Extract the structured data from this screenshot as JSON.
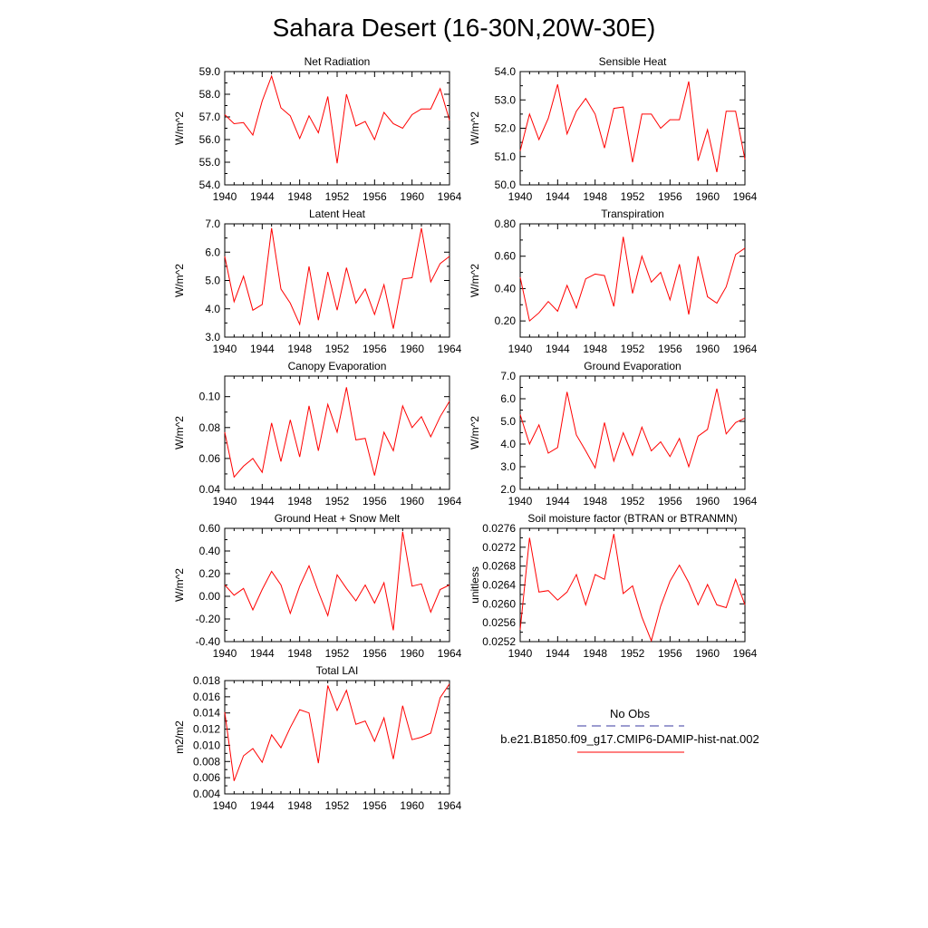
{
  "page": {
    "title": "Sahara Desert (16-30N,20W-30E)"
  },
  "legend": {
    "entries": [
      {
        "label": "No Obs",
        "color": "#3a3aa0",
        "dash": true
      },
      {
        "label": "b.e21.B1850.f09_g17.CMIP6-DAMIP-hist-nat.002",
        "color": "#ff0000",
        "dash": false
      }
    ]
  },
  "chart_data": [
    {
      "type": "line",
      "title": "Net Radiation",
      "ylabel": "W/m^2",
      "x": [
        1940,
        1941,
        1942,
        1943,
        1944,
        1945,
        1946,
        1947,
        1948,
        1949,
        1950,
        1951,
        1952,
        1953,
        1954,
        1955,
        1956,
        1957,
        1958,
        1959,
        1960,
        1961,
        1962,
        1963,
        1964
      ],
      "xlim": [
        1940,
        1964
      ],
      "xticks": [
        "1940",
        "1944",
        "1948",
        "1952",
        "1956",
        "1960",
        "1964"
      ],
      "ylim": [
        54.0,
        59.0
      ],
      "yticks": [
        "54.0",
        "55.0",
        "56.0",
        "57.0",
        "58.0",
        "59.0"
      ],
      "series": [
        {
          "color": "#ff0000",
          "values": [
            57.1,
            56.7,
            56.75,
            56.2,
            57.7,
            58.8,
            57.4,
            57.05,
            56.05,
            57.05,
            56.3,
            57.9,
            54.95,
            58.0,
            56.6,
            56.8,
            56.0,
            57.2,
            56.7,
            56.5,
            57.1,
            57.35,
            57.35,
            58.25,
            56.85
          ]
        }
      ]
    },
    {
      "type": "line",
      "title": "Sensible Heat",
      "ylabel": "W/m^2",
      "x": [
        1940,
        1941,
        1942,
        1943,
        1944,
        1945,
        1946,
        1947,
        1948,
        1949,
        1950,
        1951,
        1952,
        1953,
        1954,
        1955,
        1956,
        1957,
        1958,
        1959,
        1960,
        1961,
        1962,
        1963,
        1964
      ],
      "xlim": [
        1940,
        1964
      ],
      "xticks": [
        "1940",
        "1944",
        "1948",
        "1952",
        "1956",
        "1960",
        "1964"
      ],
      "ylim": [
        50.0,
        54.0
      ],
      "yticks": [
        "50.0",
        "51.0",
        "52.0",
        "53.0",
        "54.0"
      ],
      "series": [
        {
          "color": "#ff0000",
          "values": [
            51.2,
            52.5,
            51.6,
            52.35,
            53.55,
            51.8,
            52.6,
            53.05,
            52.5,
            51.3,
            52.7,
            52.75,
            50.8,
            52.5,
            52.5,
            52.0,
            52.3,
            52.3,
            53.65,
            50.85,
            51.95,
            50.45,
            52.6,
            52.6,
            50.9
          ]
        }
      ]
    },
    {
      "type": "line",
      "title": "Latent Heat",
      "ylabel": "W/m^2",
      "x": [
        1940,
        1941,
        1942,
        1943,
        1944,
        1945,
        1946,
        1947,
        1948,
        1949,
        1950,
        1951,
        1952,
        1953,
        1954,
        1955,
        1956,
        1957,
        1958,
        1959,
        1960,
        1961,
        1962,
        1963,
        1964
      ],
      "xlim": [
        1940,
        1964
      ],
      "xticks": [
        "1940",
        "1944",
        "1948",
        "1952",
        "1956",
        "1960",
        "1964"
      ],
      "ylim": [
        3.0,
        7.0
      ],
      "yticks": [
        "3.0",
        "4.0",
        "5.0",
        "6.0",
        "7.0"
      ],
      "series": [
        {
          "color": "#ff0000",
          "values": [
            5.85,
            4.25,
            5.15,
            3.95,
            4.15,
            6.85,
            4.7,
            4.2,
            3.45,
            5.5,
            3.6,
            5.3,
            3.95,
            5.45,
            4.2,
            4.7,
            3.8,
            4.85,
            3.3,
            5.05,
            5.1,
            6.85,
            4.95,
            5.6,
            5.85
          ]
        }
      ]
    },
    {
      "type": "line",
      "title": "Transpiration",
      "ylabel": "W/m^2",
      "x": [
        1940,
        1941,
        1942,
        1943,
        1944,
        1945,
        1946,
        1947,
        1948,
        1949,
        1950,
        1951,
        1952,
        1953,
        1954,
        1955,
        1956,
        1957,
        1958,
        1959,
        1960,
        1961,
        1962,
        1963,
        1964
      ],
      "xlim": [
        1940,
        1964
      ],
      "xticks": [
        "1940",
        "1944",
        "1948",
        "1952",
        "1956",
        "1960",
        "1964"
      ],
      "ylim": [
        0.1,
        0.8
      ],
      "yticks": [
        "0.20",
        "0.40",
        "0.60",
        "0.80"
      ],
      "ytick_values": [
        0.2,
        0.4,
        0.6,
        0.8
      ],
      "series": [
        {
          "color": "#ff0000",
          "values": [
            0.47,
            0.2,
            0.25,
            0.32,
            0.26,
            0.42,
            0.28,
            0.46,
            0.49,
            0.48,
            0.29,
            0.72,
            0.37,
            0.6,
            0.44,
            0.5,
            0.33,
            0.55,
            0.24,
            0.6,
            0.35,
            0.31,
            0.41,
            0.61,
            0.65
          ]
        }
      ]
    },
    {
      "type": "line",
      "title": "Canopy Evaporation",
      "ylabel": "W/m^2",
      "x": [
        1940,
        1941,
        1942,
        1943,
        1944,
        1945,
        1946,
        1947,
        1948,
        1949,
        1950,
        1951,
        1952,
        1953,
        1954,
        1955,
        1956,
        1957,
        1958,
        1959,
        1960,
        1961,
        1962,
        1963,
        1964
      ],
      "xlim": [
        1940,
        1964
      ],
      "xticks": [
        "1940",
        "1944",
        "1948",
        "1952",
        "1956",
        "1960",
        "1964"
      ],
      "ylim": [
        0.04,
        0.1133
      ],
      "yticks": [
        "0.04",
        "0.06",
        "0.08",
        "0.10"
      ],
      "ytick_values": [
        0.04,
        0.06,
        0.08,
        0.1
      ],
      "series": [
        {
          "color": "#ff0000",
          "values": [
            0.077,
            0.048,
            0.055,
            0.06,
            0.051,
            0.083,
            0.058,
            0.085,
            0.061,
            0.094,
            0.065,
            0.095,
            0.077,
            0.106,
            0.072,
            0.073,
            0.049,
            0.077,
            0.065,
            0.094,
            0.08,
            0.087,
            0.074,
            0.087,
            0.097
          ]
        }
      ]
    },
    {
      "type": "line",
      "title": "Ground Evaporation",
      "ylabel": "W/m^2",
      "x": [
        1940,
        1941,
        1942,
        1943,
        1944,
        1945,
        1946,
        1947,
        1948,
        1949,
        1950,
        1951,
        1952,
        1953,
        1954,
        1955,
        1956,
        1957,
        1958,
        1959,
        1960,
        1961,
        1962,
        1963,
        1964
      ],
      "xlim": [
        1940,
        1964
      ],
      "xticks": [
        "1940",
        "1944",
        "1948",
        "1952",
        "1956",
        "1960",
        "1964"
      ],
      "ylim": [
        2.0,
        7.0
      ],
      "yticks": [
        "2.0",
        "3.0",
        "4.0",
        "5.0",
        "6.0",
        "7.0"
      ],
      "series": [
        {
          "color": "#ff0000",
          "values": [
            5.3,
            4.0,
            4.85,
            3.6,
            3.85,
            6.3,
            4.4,
            3.7,
            2.95,
            4.95,
            3.25,
            4.5,
            3.5,
            4.75,
            3.7,
            4.1,
            3.45,
            4.25,
            3.0,
            4.35,
            4.65,
            6.45,
            4.45,
            4.95,
            5.15
          ]
        }
      ]
    },
    {
      "type": "line",
      "title": "Ground Heat + Snow Melt",
      "ylabel": "W/m^2",
      "x": [
        1940,
        1941,
        1942,
        1943,
        1944,
        1945,
        1946,
        1947,
        1948,
        1949,
        1950,
        1951,
        1952,
        1953,
        1954,
        1955,
        1956,
        1957,
        1958,
        1959,
        1960,
        1961,
        1962,
        1963,
        1964
      ],
      "xlim": [
        1940,
        1964
      ],
      "xticks": [
        "1940",
        "1944",
        "1948",
        "1952",
        "1956",
        "1960",
        "1964"
      ],
      "ylim": [
        -0.4,
        0.6
      ],
      "yticks": [
        "-0.40",
        "-0.20",
        "0.00",
        "0.20",
        "0.40",
        "0.60"
      ],
      "series": [
        {
          "color": "#ff0000",
          "values": [
            0.1,
            0.01,
            0.07,
            -0.12,
            0.06,
            0.22,
            0.1,
            -0.15,
            0.09,
            0.27,
            0.04,
            -0.17,
            0.19,
            0.07,
            -0.04,
            0.1,
            -0.06,
            0.12,
            -0.3,
            0.57,
            0.09,
            0.11,
            -0.14,
            0.06,
            0.1
          ]
        }
      ]
    },
    {
      "type": "line",
      "title": "Soil moisture factor (BTRAN or BTRANMN)",
      "ylabel": "unitless",
      "x": [
        1940,
        1941,
        1942,
        1943,
        1944,
        1945,
        1946,
        1947,
        1948,
        1949,
        1950,
        1951,
        1952,
        1953,
        1954,
        1955,
        1956,
        1957,
        1958,
        1959,
        1960,
        1961,
        1962,
        1963,
        1964
      ],
      "xlim": [
        1940,
        1964
      ],
      "xticks": [
        "1940",
        "1944",
        "1948",
        "1952",
        "1956",
        "1960",
        "1964"
      ],
      "ylim": [
        0.0252,
        0.0276
      ],
      "yticks": [
        "0.0252",
        "0.0256",
        "0.0260",
        "0.0264",
        "0.0268",
        "0.0272",
        "0.0276"
      ],
      "series": [
        {
          "color": "#ff0000",
          "values": [
            0.02545,
            0.0274,
            0.02625,
            0.02628,
            0.02608,
            0.02625,
            0.02662,
            0.02598,
            0.02662,
            0.02652,
            0.02748,
            0.02622,
            0.02638,
            0.02572,
            0.02522,
            0.02595,
            0.02648,
            0.02682,
            0.02645,
            0.02598,
            0.02641,
            0.02598,
            0.02592,
            0.02652,
            0.02598
          ]
        }
      ]
    },
    {
      "type": "line",
      "title": "Total LAI",
      "ylabel": "m2/m2",
      "x": [
        1940,
        1941,
        1942,
        1943,
        1944,
        1945,
        1946,
        1947,
        1948,
        1949,
        1950,
        1951,
        1952,
        1953,
        1954,
        1955,
        1956,
        1957,
        1958,
        1959,
        1960,
        1961,
        1962,
        1963,
        1964
      ],
      "xlim": [
        1940,
        1964
      ],
      "xticks": [
        "1940",
        "1944",
        "1948",
        "1952",
        "1956",
        "1960",
        "1964"
      ],
      "ylim": [
        0.004,
        0.018
      ],
      "yticks": [
        "0.004",
        "0.006",
        "0.008",
        "0.010",
        "0.012",
        "0.014",
        "0.016",
        "0.018"
      ],
      "series": [
        {
          "color": "#ff0000",
          "values": [
            0.0141,
            0.0056,
            0.0087,
            0.0096,
            0.0079,
            0.0113,
            0.0097,
            0.0122,
            0.0144,
            0.014,
            0.0078,
            0.0174,
            0.0143,
            0.0168,
            0.0126,
            0.013,
            0.0105,
            0.0134,
            0.0083,
            0.0149,
            0.0107,
            0.011,
            0.0115,
            0.0159,
            0.0176
          ]
        }
      ]
    }
  ]
}
